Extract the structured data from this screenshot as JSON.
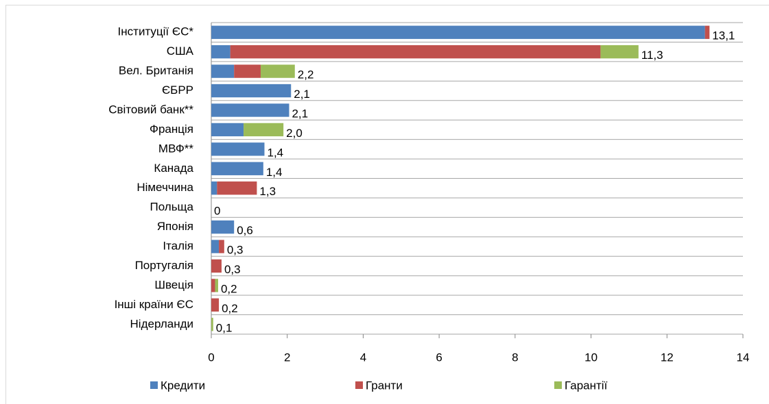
{
  "chart_data": {
    "type": "stacked_barh",
    "categories": [
      "Інституції ЄС*",
      "США",
      "Вел. Британія",
      "ЄБРР",
      "Світовий банк**",
      "Франція",
      "МВФ**",
      "Канада",
      "Німеччина",
      "Польща",
      "Японія",
      "Італія",
      "Португалія",
      "Швеція",
      "Інші країни ЄС",
      "Нідерланди"
    ],
    "series": [
      {
        "name": "Кредити",
        "color": "#4f81bd",
        "values": [
          13.0,
          0.5,
          0.6,
          2.1,
          2.05,
          0.85,
          1.4,
          1.37,
          0.15,
          0,
          0.6,
          0.2,
          0,
          0,
          0,
          0
        ]
      },
      {
        "name": "Гранти",
        "color": "#c0504d",
        "values": [
          0.12,
          9.75,
          0.7,
          0,
          0,
          0,
          0,
          0,
          1.05,
          0,
          0,
          0.14,
          0.27,
          0.1,
          0.2,
          0
        ]
      },
      {
        "name": "Гарантії",
        "color": "#9bbb59",
        "values": [
          0,
          1.0,
          0.9,
          0,
          0,
          1.05,
          0,
          0,
          0,
          0,
          0,
          0,
          0,
          0.08,
          0,
          0.05
        ]
      }
    ],
    "total_labels": [
      "13,1",
      "11,3",
      "2,2",
      "2,1",
      "2,1",
      "2,0",
      "1,4",
      "1,4",
      "1,3",
      "0",
      "0,6",
      "0,3",
      "0,3",
      "0,2",
      "0,2",
      "0,1"
    ],
    "xlim": [
      0,
      14
    ],
    "xticks": [
      0,
      2,
      4,
      6,
      8,
      10,
      12,
      14
    ]
  }
}
